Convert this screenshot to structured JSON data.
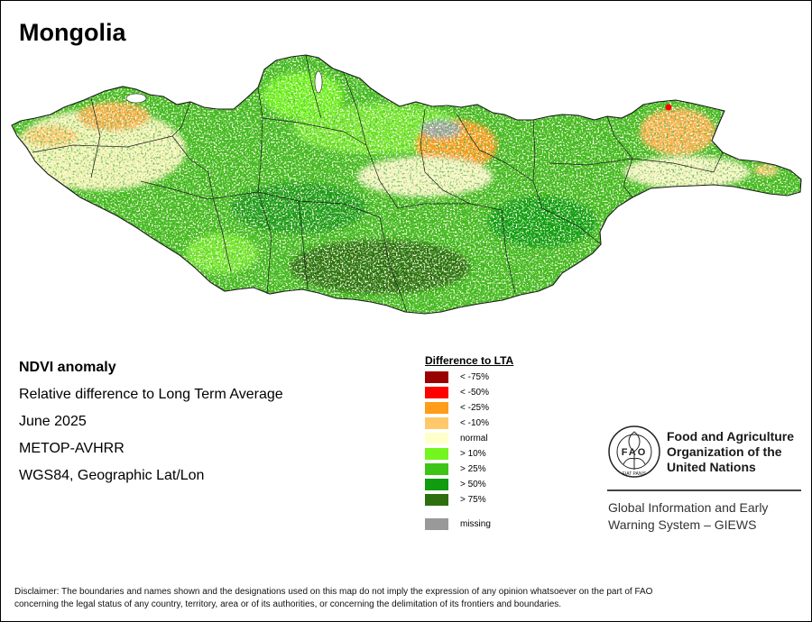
{
  "map": {
    "title": "Mongolia",
    "colors": {
      "background_green": "#44bb1c",
      "border": "#1a1a1a",
      "lake": "#ffffff"
    }
  },
  "info": {
    "title": "NDVI anomaly",
    "subtitle": "Relative difference to Long Term Average",
    "date": "June 2025",
    "sensor": "METOP-AVHRR",
    "projection": "WGS84, Geographic Lat/Lon"
  },
  "legend": {
    "title": "Difference to LTA",
    "items": [
      {
        "label": "< -75%",
        "color": "#990000"
      },
      {
        "label": "< -50%",
        "color": "#ff0000"
      },
      {
        "label": "< -25%",
        "color": "#ff9c1a"
      },
      {
        "label": "< -10%",
        "color": "#ffc96b"
      },
      {
        "label": "normal",
        "color": "#ffffcc"
      },
      {
        "label": "> 10%",
        "color": "#73f51e"
      },
      {
        "label": "> 25%",
        "color": "#3dc416"
      },
      {
        "label": "> 50%",
        "color": "#0f9c0f"
      },
      {
        "label": "> 75%",
        "color": "#2d6e0f"
      }
    ],
    "missing": {
      "label": "missing",
      "color": "#999999"
    }
  },
  "org": {
    "logo_text": "FAO",
    "logo_ring_text": "FIAT PANIS",
    "line1": "Food and Agriculture",
    "line2": "Organization of the",
    "line3": "United Nations",
    "giews1": "Global Information and Early",
    "giews2": "Warning System – GIEWS"
  },
  "disclaimer": {
    "line1": "Disclaimer: The boundaries and names shown and the designations used on this map do not imply the expression of any opinion whatsoever on the part of FAO",
    "line2": "concerning the legal status of any country, territory, area or of its authorities, or concerning the delimitation of its frontiers and boundaries."
  }
}
